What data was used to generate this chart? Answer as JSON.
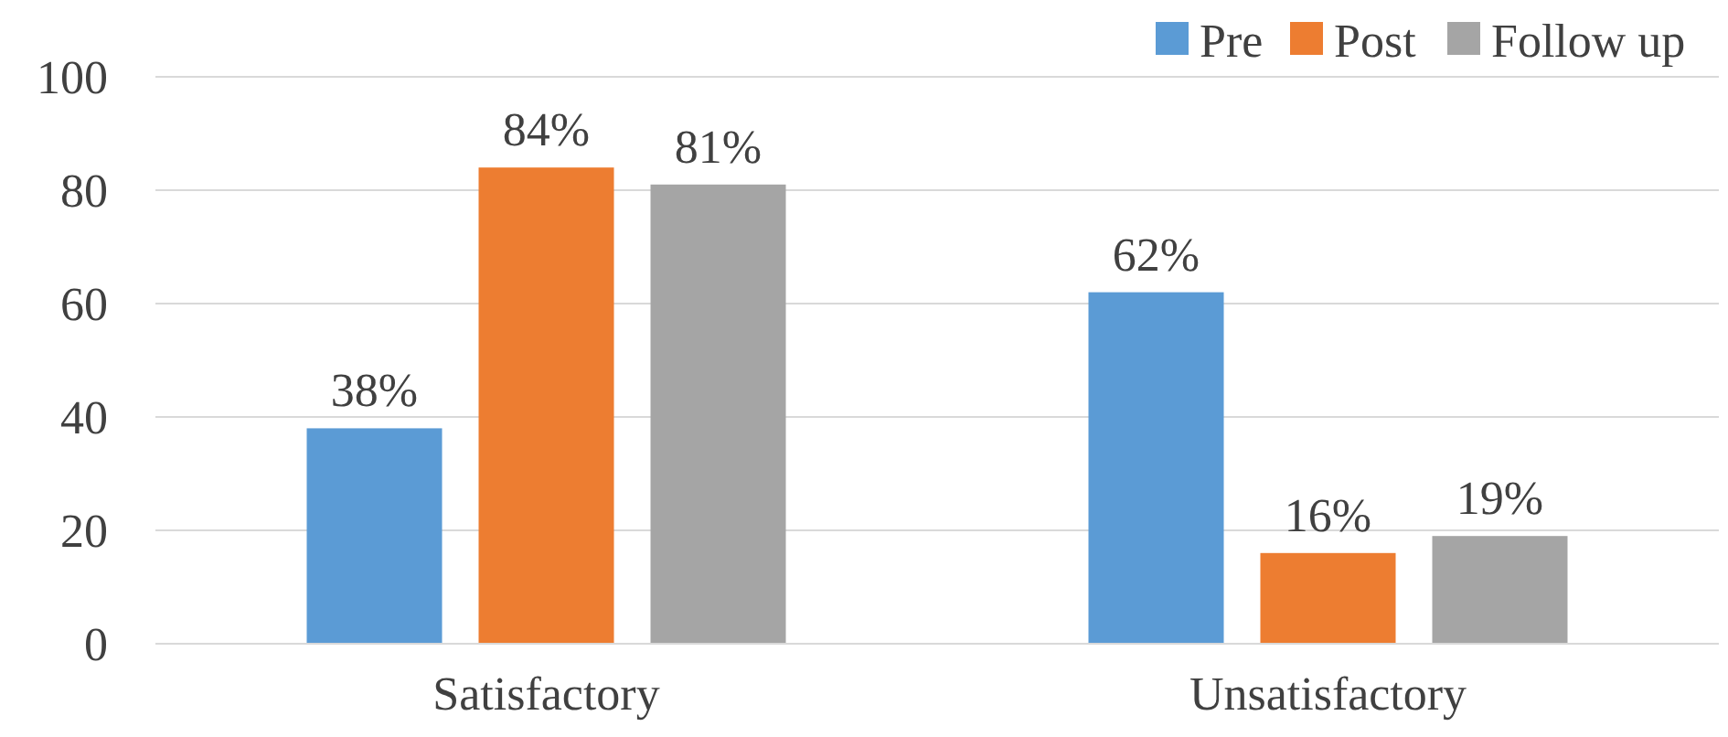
{
  "chart_data": {
    "type": "bar",
    "categories": [
      "Satisfactory",
      "Unsatisfactory"
    ],
    "series": [
      {
        "name": "Pre",
        "color": "#5b9bd5",
        "values": [
          38,
          62
        ],
        "value_labels": [
          "38%",
          "62%"
        ]
      },
      {
        "name": "Post",
        "color": "#ed7d31",
        "values": [
          84,
          16
        ],
        "value_labels": [
          "84%",
          "16%"
        ]
      },
      {
        "name": "Follow up",
        "color": "#a5a5a5",
        "values": [
          81,
          19
        ],
        "value_labels": [
          "81%",
          "19%"
        ]
      }
    ],
    "ylim": [
      0,
      100
    ],
    "yticks": [
      0,
      20,
      40,
      60,
      80,
      100
    ],
    "grid": "y",
    "legend": "top right"
  }
}
